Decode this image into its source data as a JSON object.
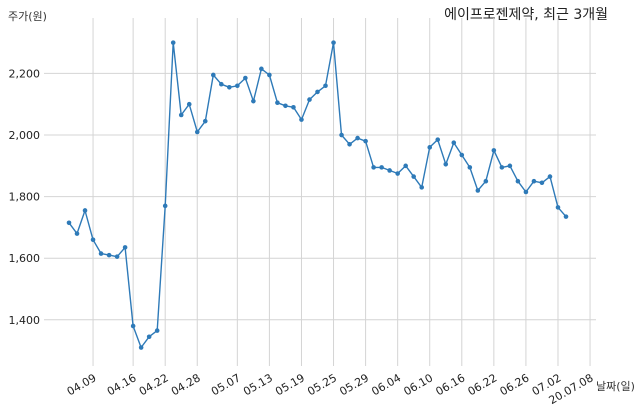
{
  "title": "에이프로젠제약, 최근 3개월",
  "ylabel": "주가(원)",
  "xlabel": "날짜(일)",
  "chart_data": {
    "type": "line",
    "title": "에이프로젠제약, 최근 3개월",
    "xlabel": "날짜(일)",
    "ylabel": "주가(원)",
    "ylim": [
      1250,
      2380
    ],
    "yticks": [
      1400,
      1600,
      1800,
      2000,
      2200
    ],
    "ytick_labels": [
      "1,400",
      "1,600",
      "1,800",
      "2,000",
      "2,200"
    ],
    "xtick_labels": [
      "04.09",
      "04.16",
      "04.22",
      "04.28",
      "05.07",
      "05.13",
      "05.19",
      "05.25",
      "05.29",
      "06.04",
      "06.10",
      "06.16",
      "06.22",
      "06.26",
      "07.02",
      "20.07.08"
    ],
    "xtick_index": [
      3,
      8,
      12,
      16,
      21,
      25,
      29,
      33,
      37,
      41,
      45,
      49,
      53,
      57,
      61,
      65
    ],
    "grid": true,
    "line_color": "#2e7ab8",
    "values": [
      1715,
      1680,
      1755,
      1660,
      1615,
      1610,
      1605,
      1635,
      1380,
      1310,
      1345,
      1365,
      1770,
      2300,
      2065,
      2100,
      2010,
      2045,
      2195,
      2165,
      2155,
      2160,
      2185,
      2110,
      2215,
      2195,
      2105,
      2095,
      2090,
      2050,
      2115,
      2140,
      2160,
      2300,
      2000,
      1970,
      1990,
      1980,
      1895,
      1895,
      1885,
      1875,
      1900,
      1865,
      1830,
      1960,
      1985,
      1905,
      1975,
      1935,
      1895,
      1820,
      1850,
      1950,
      1895,
      1900,
      1850,
      1815,
      1850,
      1845,
      1865,
      1765,
      1735
    ]
  }
}
